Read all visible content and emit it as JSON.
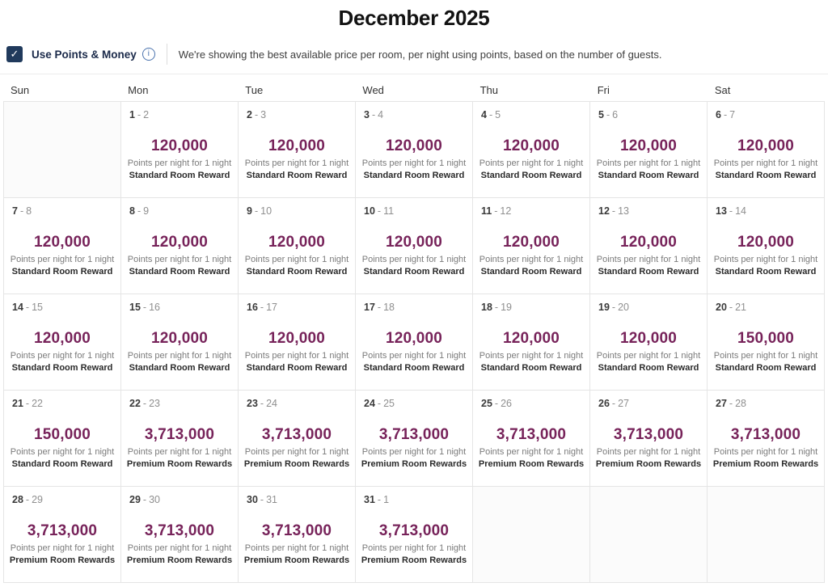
{
  "page_title": "December 2025",
  "icons": {
    "check": "✓",
    "info": "i"
  },
  "colors": {
    "points_text": "#77235a",
    "checkbox_bg": "#203a5c",
    "info_icon": "#4a72ad",
    "grid_border": "#e5e5e5"
  },
  "points_toggle": {
    "label": "Use Points & Money",
    "checked": true,
    "description": "We're showing the best available price per room, per night using points, based on the number of guests."
  },
  "calendar": {
    "day_headers": [
      "Sun",
      "Mon",
      "Tue",
      "Wed",
      "Thu",
      "Fri",
      "Sat"
    ],
    "date_separator": "-",
    "points_label": "Points per night for 1 night",
    "weeks": [
      [
        null,
        {
          "check_in": "1",
          "check_out": "2",
          "points": "120,000",
          "room_type": "Standard Room Reward"
        },
        {
          "check_in": "2",
          "check_out": "3",
          "points": "120,000",
          "room_type": "Standard Room Reward"
        },
        {
          "check_in": "3",
          "check_out": "4",
          "points": "120,000",
          "room_type": "Standard Room Reward"
        },
        {
          "check_in": "4",
          "check_out": "5",
          "points": "120,000",
          "room_type": "Standard Room Reward"
        },
        {
          "check_in": "5",
          "check_out": "6",
          "points": "120,000",
          "room_type": "Standard Room Reward"
        },
        {
          "check_in": "6",
          "check_out": "7",
          "points": "120,000",
          "room_type": "Standard Room Reward"
        }
      ],
      [
        {
          "check_in": "7",
          "check_out": "8",
          "points": "120,000",
          "room_type": "Standard Room Reward"
        },
        {
          "check_in": "8",
          "check_out": "9",
          "points": "120,000",
          "room_type": "Standard Room Reward"
        },
        {
          "check_in": "9",
          "check_out": "10",
          "points": "120,000",
          "room_type": "Standard Room Reward"
        },
        {
          "check_in": "10",
          "check_out": "11",
          "points": "120,000",
          "room_type": "Standard Room Reward"
        },
        {
          "check_in": "11",
          "check_out": "12",
          "points": "120,000",
          "room_type": "Standard Room Reward"
        },
        {
          "check_in": "12",
          "check_out": "13",
          "points": "120,000",
          "room_type": "Standard Room Reward"
        },
        {
          "check_in": "13",
          "check_out": "14",
          "points": "120,000",
          "room_type": "Standard Room Reward"
        }
      ],
      [
        {
          "check_in": "14",
          "check_out": "15",
          "points": "120,000",
          "room_type": "Standard Room Reward"
        },
        {
          "check_in": "15",
          "check_out": "16",
          "points": "120,000",
          "room_type": "Standard Room Reward"
        },
        {
          "check_in": "16",
          "check_out": "17",
          "points": "120,000",
          "room_type": "Standard Room Reward"
        },
        {
          "check_in": "17",
          "check_out": "18",
          "points": "120,000",
          "room_type": "Standard Room Reward"
        },
        {
          "check_in": "18",
          "check_out": "19",
          "points": "120,000",
          "room_type": "Standard Room Reward"
        },
        {
          "check_in": "19",
          "check_out": "20",
          "points": "120,000",
          "room_type": "Standard Room Reward"
        },
        {
          "check_in": "20",
          "check_out": "21",
          "points": "150,000",
          "room_type": "Standard Room Reward"
        }
      ],
      [
        {
          "check_in": "21",
          "check_out": "22",
          "points": "150,000",
          "room_type": "Standard Room Reward"
        },
        {
          "check_in": "22",
          "check_out": "23",
          "points": "3,713,000",
          "room_type": "Premium Room Rewards"
        },
        {
          "check_in": "23",
          "check_out": "24",
          "points": "3,713,000",
          "room_type": "Premium Room Rewards"
        },
        {
          "check_in": "24",
          "check_out": "25",
          "points": "3,713,000",
          "room_type": "Premium Room Rewards"
        },
        {
          "check_in": "25",
          "check_out": "26",
          "points": "3,713,000",
          "room_type": "Premium Room Rewards"
        },
        {
          "check_in": "26",
          "check_out": "27",
          "points": "3,713,000",
          "room_type": "Premium Room Rewards"
        },
        {
          "check_in": "27",
          "check_out": "28",
          "points": "3,713,000",
          "room_type": "Premium Room Rewards"
        }
      ],
      [
        {
          "check_in": "28",
          "check_out": "29",
          "points": "3,713,000",
          "room_type": "Premium Room Rewards"
        },
        {
          "check_in": "29",
          "check_out": "30",
          "points": "3,713,000",
          "room_type": "Premium Room Rewards"
        },
        {
          "check_in": "30",
          "check_out": "31",
          "points": "3,713,000",
          "room_type": "Premium Room Rewards"
        },
        {
          "check_in": "31",
          "check_out": "1",
          "points": "3,713,000",
          "room_type": "Premium Room Rewards"
        },
        null,
        null,
        null
      ]
    ]
  }
}
